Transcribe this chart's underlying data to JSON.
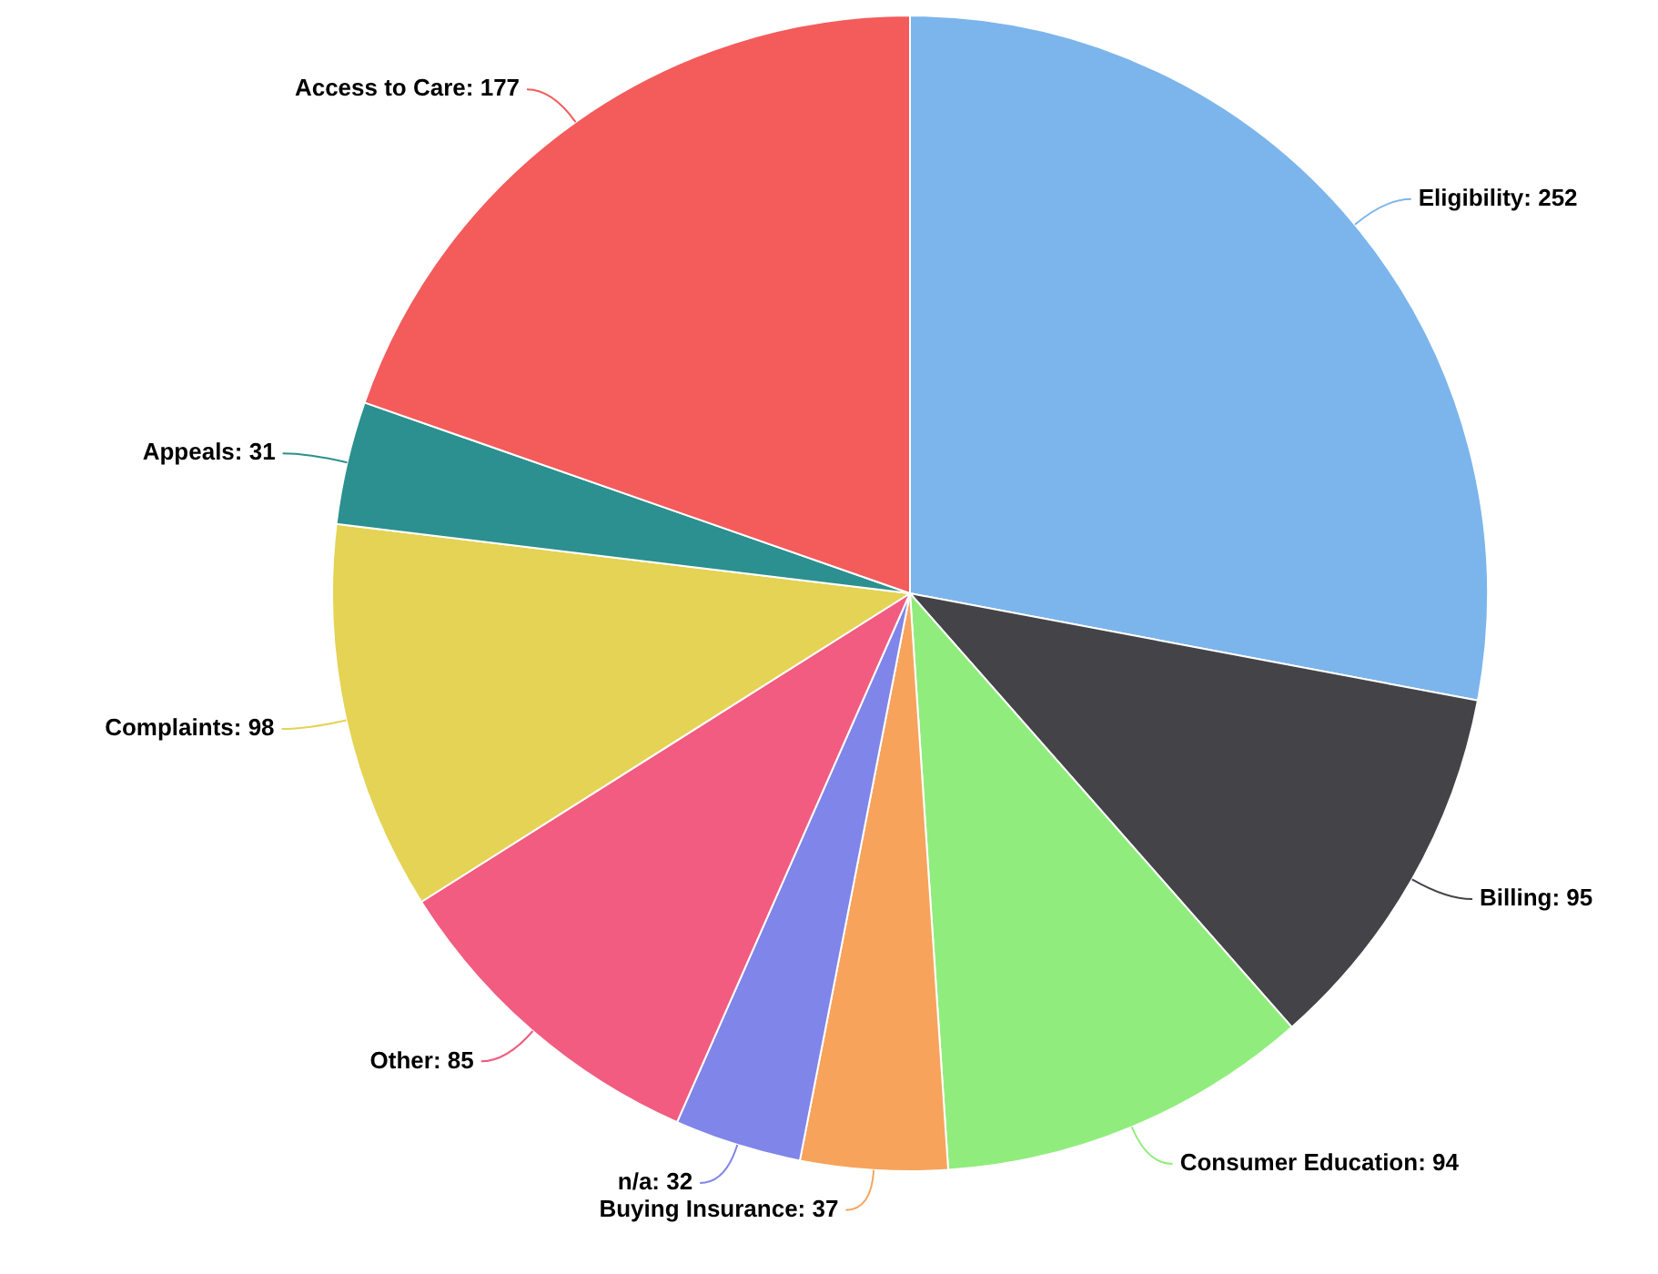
{
  "chart_data": {
    "type": "pie",
    "categories": [
      "Eligibility",
      "Billing",
      "Consumer Education",
      "Buying Insurance",
      "n/a",
      "Other",
      "Complaints",
      "Appeals",
      "Access to Care"
    ],
    "values": [
      252,
      95,
      94,
      37,
      32,
      85,
      98,
      31,
      177
    ],
    "colors": [
      "#7cb5ec",
      "#434348",
      "#90ed7d",
      "#f7a35c",
      "#8085e9",
      "#f15c80",
      "#e4d354",
      "#2b908f",
      "#f45b5b"
    ],
    "value_labels": [
      ": 252",
      ": 95",
      ": 94",
      ": 37",
      ": 32",
      ": 85",
      ": 98",
      ": 31",
      ": 177"
    ],
    "legend": false
  }
}
